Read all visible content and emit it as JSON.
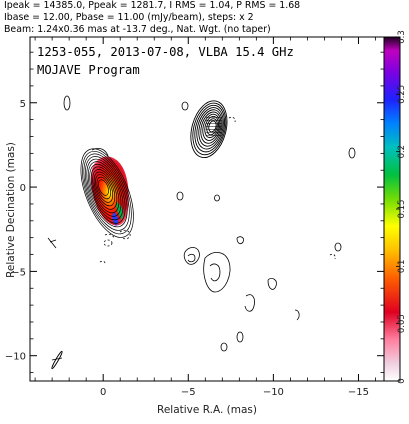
{
  "header": {
    "line1": "Ipeak = 14385.0, Ppeak = 1281.7, I RMS = 1.04, P RMS = 1.68",
    "line2": "Ibase = 12.00, Pbase = 11.00 (mJy/beam), steps: x 2",
    "line3": "Beam: 1.24x0.36 mas at -13.7 deg., Nat. Wgt. (no taper)"
  },
  "chart_data": {
    "type": "contour",
    "title": "1253-055, 2013-07-08, VLBA 15.4 GHz",
    "subtitle": "MOJAVE Program",
    "xlabel": "Relative R.A. (mas)",
    "ylabel": "Relative Decination (mas)",
    "xlim": [
      4.3,
      -16.5
    ],
    "ylim": [
      -11.5,
      8.9
    ],
    "x_ticks": [
      0,
      -5,
      -10,
      -15
    ],
    "y_ticks": [
      5,
      0,
      -5,
      -10
    ],
    "colorbar": {
      "label_ticks": [
        0,
        0.05,
        0.1,
        0.15,
        0.2,
        0.25,
        0.3
      ],
      "range": [
        0,
        0.3
      ],
      "palette": [
        "#ffffff",
        "#c8d0e8",
        "#9f1fc8",
        "#4b00e0",
        "#0040ff",
        "#00b0ff",
        "#00e0b0",
        "#00c000",
        "#a0e000",
        "#ffff00",
        "#ffa000",
        "#ff0000",
        "#c00040",
        "#ff80c0"
      ]
    },
    "core": {
      "x": 0,
      "y": 0,
      "contour_levels": 13
    },
    "jet_knot": {
      "x": -6.5,
      "y": 3.6,
      "contour_levels": 10
    },
    "beam": {
      "major": 1.24,
      "minor": 0.36,
      "pa": -13.7
    }
  }
}
